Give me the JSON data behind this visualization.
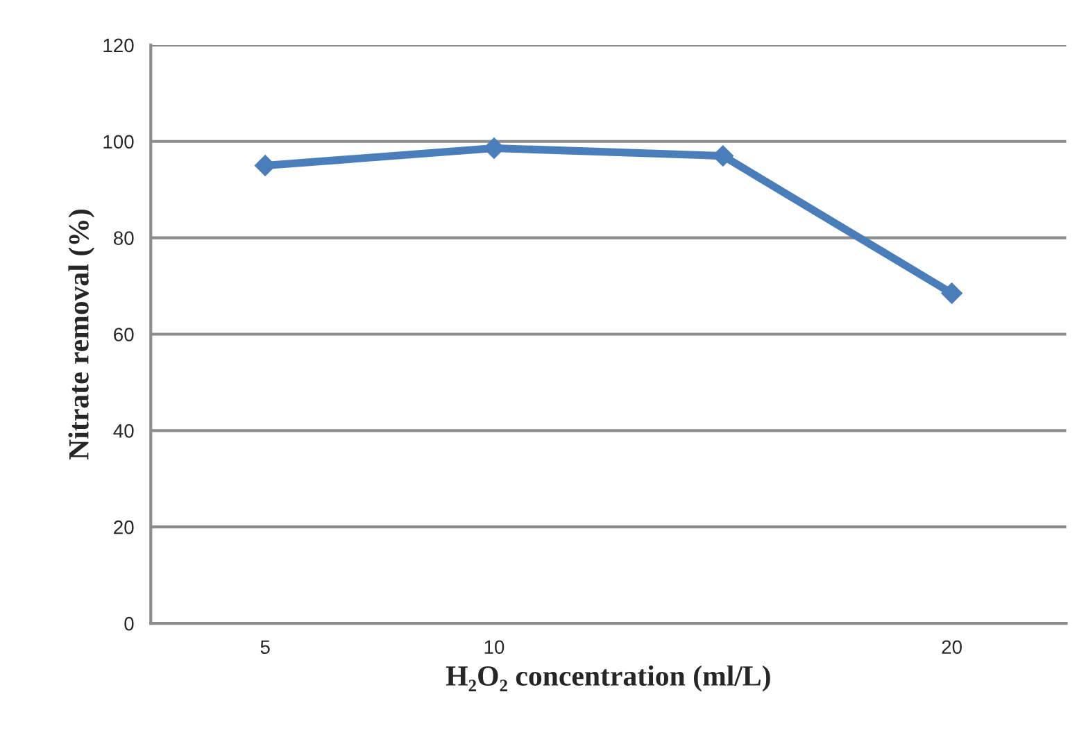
{
  "chart_data": {
    "type": "line",
    "xlabel": "H₂O₂ concentration (ml/L)",
    "ylabel": "Nitrate removal (%)",
    "categories": [
      "5",
      "10",
      null,
      "20"
    ],
    "series": [
      {
        "color": "#4a7ebb",
        "values": [
          95,
          98.6,
          97,
          68.5
        ]
      }
    ],
    "ylim": [
      0,
      120
    ],
    "yticks": [
      0,
      20,
      40,
      60,
      80,
      100,
      120
    ],
    "grid": "y",
    "marker": "diamond",
    "line_style": "solid",
    "legend": false
  }
}
